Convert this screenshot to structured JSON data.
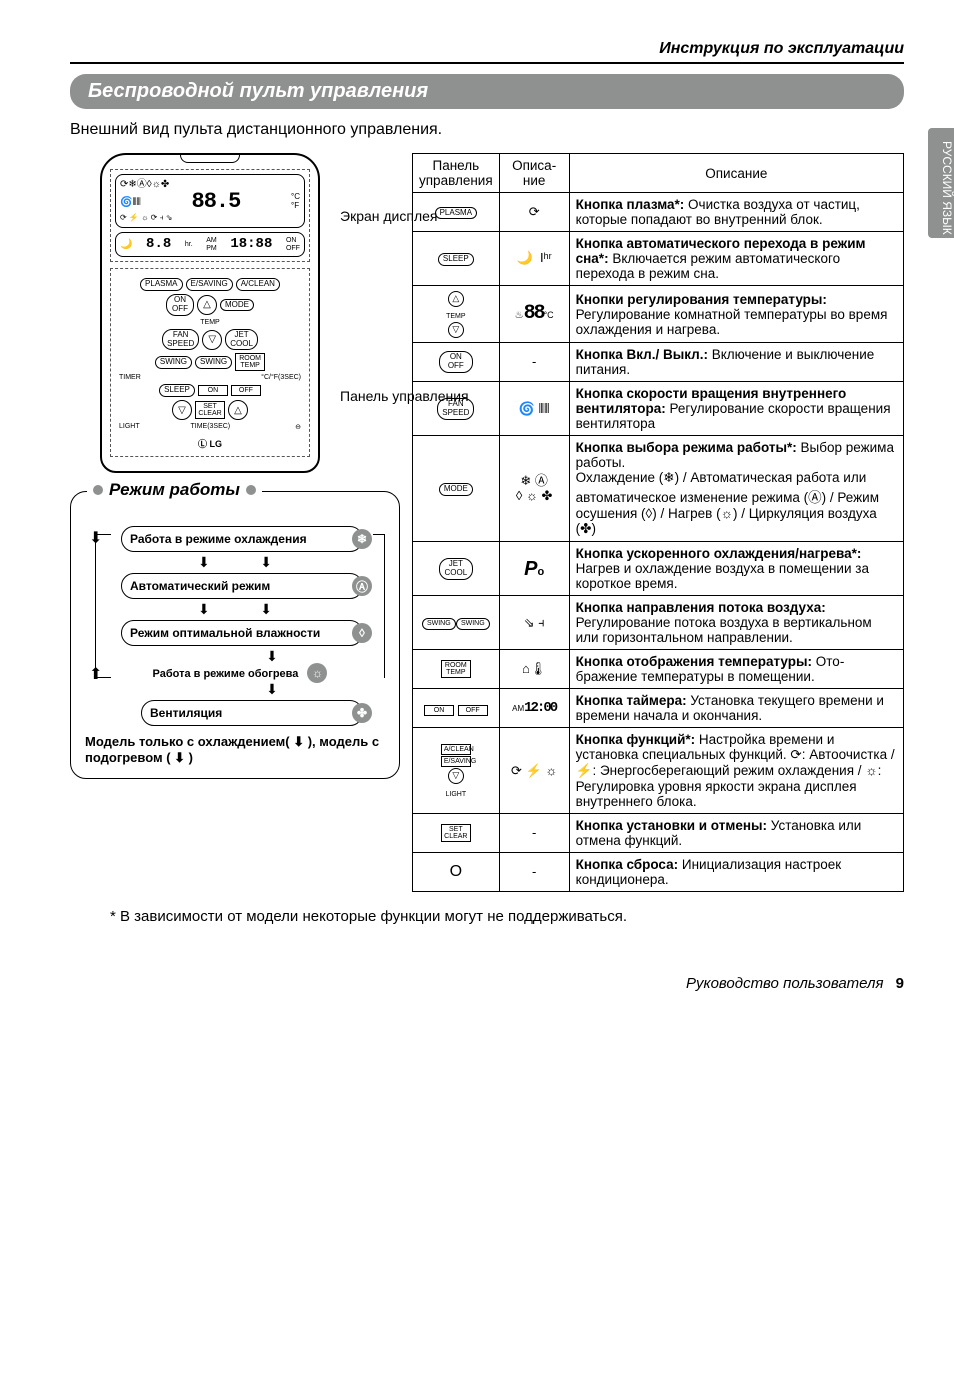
{
  "header": {
    "breadcrumb": "Инструкция по эксплуатации"
  },
  "title": "Беспроводной пульт управления",
  "intro": "Внешний вид пульта дистанционного управления.",
  "side_tab": "РУССКИЙ ЯЗЫК",
  "remote": {
    "label_screen": "Экран дисплея",
    "label_panel": "Панель управления",
    "screen_88": "88.5",
    "screen_timer": "18:88",
    "screen_small": "8.8",
    "btn_plasma": "PLASMA",
    "btn_esaving": "E/SAVING",
    "btn_aclean": "A/CLEAN",
    "btn_onoff": "ON\nOFF",
    "btn_mode": "MODE",
    "lbl_temp": "TEMP",
    "btn_fan": "FAN\nSPEED",
    "btn_jet": "JET\nCOOL",
    "btn_swing1": "SWING",
    "btn_swing2": "SWING",
    "btn_room": "ROOM\nTEMP",
    "lbl_timer": "TIMER",
    "lbl_cf": "°C/°F(3SEC)",
    "btn_sleep": "SLEEP",
    "btn_on": "ON",
    "btn_off": "OFF",
    "btn_set": "SET\nCLEAR",
    "lbl_light": "LIGHT",
    "lbl_time": "TIME(3SEC)",
    "logo": "LG"
  },
  "mode_diagram": {
    "title": "Режим работы",
    "cooling": "Работа в режиме охлаждения",
    "auto": "Автоматический режим",
    "humidity": "Режим оптимальной влажности",
    "heating": "Работа в режиме обогрева",
    "vent": "Вентиляция",
    "model_note": "Модель только с охлаждением( ⬇ ), модель с подогревом ( ⬇ )",
    "icon_cool": "❄",
    "icon_auto": "Ⓐ",
    "icon_drop": "◊",
    "icon_sun": "☼",
    "icon_fan": "✤"
  },
  "table": {
    "head_panel": "Панель управления",
    "head_indic": "Описа-\nние",
    "head_desc": "Описание",
    "rows": [
      {
        "panel": "PLASMA",
        "panel_type": "pill",
        "indic": "⟳",
        "desc_b": "Кнопка плазма*:",
        "desc": " Очистка воздуха от частиц, которые попадают во внутренний блок."
      },
      {
        "panel": "SLEEP",
        "panel_type": "pill",
        "indic": "🌙  Iʰʳ",
        "desc_b": "Кнопка автоматического перехода в режим сна*:",
        "desc": " Включается режим авто­матического перехода в режим сна."
      },
      {
        "panel": "△\nTEMP\n▽",
        "panel_type": "circles",
        "indic": "♨88°C",
        "indic_type": "seg",
        "desc_b": "Кнопки регулирования температуры:",
        "desc": " Регулирование комнатной температуры во время охлаждения и нагрева."
      },
      {
        "panel": "ON\nOFF",
        "panel_type": "oval",
        "indic": "-",
        "desc_b": "Кнопка Вкл./ Выкл.:",
        "desc": " Включение и выключение питания."
      },
      {
        "panel": "FAN\nSPEED",
        "panel_type": "oval",
        "indic": "🌀 ⫴⫴",
        "desc_b": "Кнопка скорости вращения внутрен­него вентилятора:",
        "desc": " Регулирование ско­рости вращения вентилятора"
      },
      {
        "panel": "MODE",
        "panel_type": "oval",
        "indic": "❄ Ⓐ\n◊ ☼ ✤",
        "desc_b": "Кнопка выбора режима работы*:",
        "desc": " Выбор режима работы.\nОхлаждение (❄) / Автоматическая работа или автоматическое измене­ние режима (Ⓐ) / Режим осушения (◊) / Нагрев (☼) / Циркуляция возду­ха (✤)"
      },
      {
        "panel": "JET\nCOOL",
        "panel_type": "oval",
        "indic": "Pₒ",
        "indic_type": "italic",
        "desc_b": "Кнопка ускоренного охлаждения/нагре­ва*:",
        "desc": " Нагрев и охлаждение воздуха в поме­щении за короткое время."
      },
      {
        "panel": "SWING  SWING",
        "panel_type": "pill2",
        "indic": "⇘ ⫞",
        "desc_b": "Кнопка направления потока воздуха:",
        "desc": " Регулирование потока воздуха в верти­кальном или горизонтальном направлении."
      },
      {
        "panel": "ROOM\nTEMP",
        "panel_type": "squ",
        "indic": "⌂🌡",
        "desc_b": "Кнопка отображения температуры:",
        "desc": " Ото­бражение температуры в помещении."
      },
      {
        "panel": "ON   OFF",
        "panel_type": "squ2",
        "indic": "ᴬᴹ12:00⏱",
        "indic_type": "seg-sm",
        "desc_b": "Кнопка таймера:",
        "desc": " Установка текущего времени и времени начала и окончания."
      },
      {
        "panel": "A/CLEAN\nE/SAVING\n▽\nLIGHT",
        "panel_type": "stack",
        "indic": "⟳ ⚡ ☼",
        "desc_b": "Кнопка функций*:",
        "desc": " Настройка време­ни и установка специальных функций. ⟳: Автоочистка / ⚡: Энергосбере­гающий режим охлаждения / ☼: Регулировка уровня яркости экрана дисплея внутреннего блока."
      },
      {
        "panel": "SET\nCLEAR",
        "panel_type": "squ",
        "indic": "-",
        "desc_b": "Кнопка установки и отмены:",
        "desc": " Уста­новка или отмена функций."
      },
      {
        "panel": "O",
        "panel_type": "plain",
        "indic": "-",
        "desc_b": "Кнопка сброса:",
        "desc": " Инициализация настроек кондиционера."
      }
    ]
  },
  "footnote": "* В зависимости от модели некоторые функции могут не поддерживаться.",
  "footer": {
    "text": "Руководство пользователя",
    "page": "9"
  },
  "colors": {
    "bar": "#8f9090",
    "text": "#000000",
    "bg": "#ffffff"
  }
}
